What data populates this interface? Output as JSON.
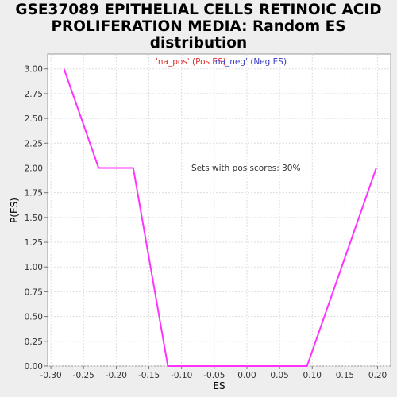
{
  "chart_data": {
    "type": "line",
    "title_lines": [
      "GSE37089 EPITHELIAL CELLS RETINOIC ACID",
      "PROLIFERATION MEDIA: Random ES",
      "distribution"
    ],
    "xlabel": "ES",
    "ylabel": "P(ES)",
    "xlim": [
      -0.305,
      0.22
    ],
    "ylim": [
      0,
      3.15
    ],
    "x_ticks": [
      -0.3,
      -0.25,
      -0.2,
      -0.15,
      -0.1,
      -0.05,
      0.0,
      0.05,
      0.1,
      0.15,
      0.2
    ],
    "x_tick_labels": [
      "-0.30",
      "-0.25",
      "-0.20",
      "-0.15",
      "-0.10",
      "-0.05",
      "0.00",
      "0.05",
      "0.10",
      "0.15",
      "0.20"
    ],
    "y_ticks": [
      0.0,
      0.25,
      0.5,
      0.75,
      1.0,
      1.25,
      1.5,
      1.75,
      2.0,
      2.25,
      2.5,
      2.75,
      3.0
    ],
    "y_tick_labels": [
      "0.00",
      "0.25",
      "0.50",
      "0.75",
      "1.00",
      "1.25",
      "1.50",
      "1.75",
      "2.00",
      "2.25",
      "2.50",
      "2.75",
      "3.00"
    ],
    "grid": true,
    "legend": [
      {
        "label": "'na_pos' (Pos ES)",
        "color": "#e03030"
      },
      {
        "label": "'na_neg' (Neg ES)",
        "color": "#3c3cc8"
      }
    ],
    "annotation": "Sets with pos scores: 30%",
    "series": [
      {
        "color": "#ff33ff",
        "points": [
          [
            -0.28,
            3.0
          ],
          [
            -0.227,
            2.0
          ],
          [
            -0.174,
            2.0
          ],
          [
            -0.121,
            0.0
          ],
          [
            0.092,
            0.0
          ],
          [
            0.198,
            2.0
          ]
        ]
      }
    ]
  }
}
